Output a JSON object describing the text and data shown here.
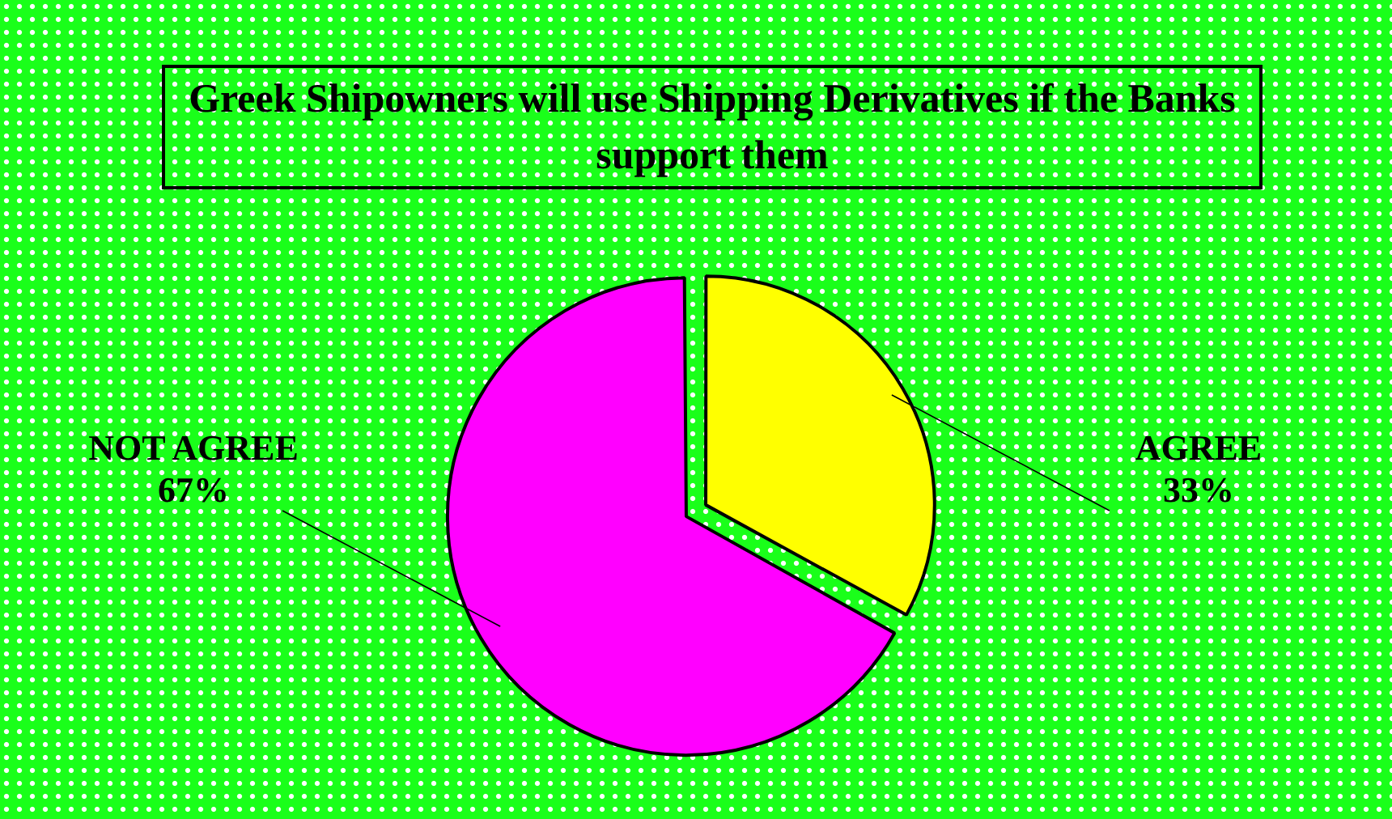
{
  "chart_data": {
    "type": "pie",
    "title": "Greek Shipowners will use Shipping Derivatives if the Banks support them",
    "categories": [
      "AGREE",
      "NOT AGREE"
    ],
    "values": [
      33,
      67
    ],
    "colors": [
      "#ffff00",
      "#ff00ff"
    ],
    "value_labels": [
      "33%",
      "67%"
    ],
    "legend": false
  }
}
